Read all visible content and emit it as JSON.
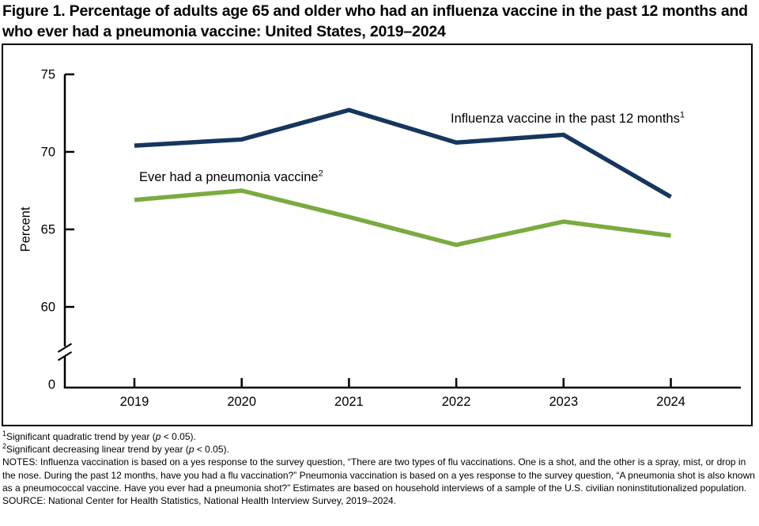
{
  "figure": {
    "title": "Figure 1. Percentage of adults age 65 and older who had an influenza vaccine in the past 12 months and who ever had a pneumonia vaccine: United States, 2019–2024"
  },
  "chart_data": {
    "type": "line",
    "title": "Percentage of adults age 65 and older who had an influenza vaccine in the past 12 months and who ever had a pneumonia vaccine: United States, 2019–2024",
    "categories": [
      "2019",
      "2020",
      "2021",
      "2022",
      "2023",
      "2024"
    ],
    "series": [
      {
        "name": "Influenza vaccine in the past 12 months",
        "footnote_marker": "1",
        "color": "#16365F",
        "values": [
          70.4,
          70.8,
          72.7,
          70.6,
          71.1,
          67.1
        ]
      },
      {
        "name": "Ever had a pneumonia vaccine",
        "footnote_marker": "2",
        "color": "#7BAB40",
        "values": [
          66.9,
          67.5,
          65.8,
          64.0,
          65.5,
          64.6
        ]
      }
    ],
    "xlabel": "",
    "ylabel": "Percent",
    "y_ticks": [
      "75",
      "70",
      "65",
      "60",
      "0"
    ],
    "y_tick_values": [
      75,
      70,
      65,
      60,
      0
    ],
    "ylim": [
      60,
      75
    ],
    "axis_break": true,
    "grid": false,
    "legend_position": "labels-inside-plot"
  },
  "footnotes": {
    "fn1": {
      "marker": "1",
      "pre": "Significant quadratic trend by year (",
      "italic": "p",
      "post": " < 0.05)."
    },
    "fn2": {
      "marker": "2",
      "pre": "Significant decreasing linear trend by year (",
      "italic": "p",
      "post": " < 0.05)."
    },
    "notes": "NOTES: Influenza vaccination is based on a yes response to the survey question, “There are two types of flu vaccinations. One is a shot, and the other is a spray, mist, or drop in the nose. During the past 12 months, have you had a flu vaccination?” Pneumonia vaccination is based on a yes response to the survey question, “A pneumonia shot is also known as a pneumococcal vaccine. Have you ever had a pneumonia shot?” Estimates are based on household interviews of a sample of the U.S. civilian noninstitutionalized population.",
    "source": "SOURCE: National Center for Health Statistics, National Health Interview Survey, 2019–2024."
  }
}
